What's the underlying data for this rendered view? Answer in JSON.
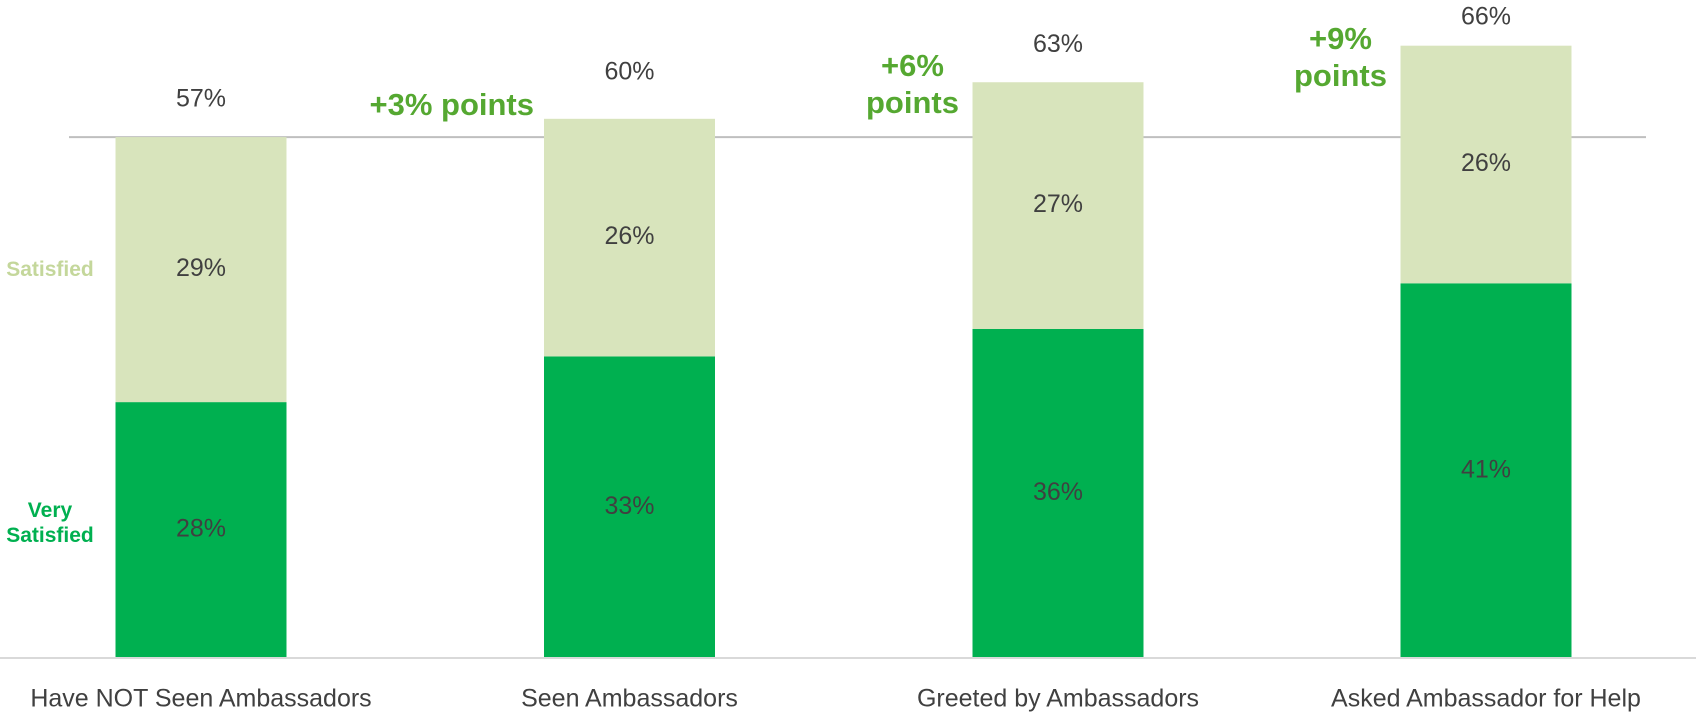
{
  "chart_data": {
    "type": "stacked_bar",
    "categories": [
      "Have NOT Seen Ambassadors",
      "Seen Ambassadors",
      "Greeted by Ambassadors",
      "Asked Ambassador for Help"
    ],
    "series": [
      {
        "name": "Very Satisfied",
        "color": "#00b050",
        "label_color": "#00b050",
        "values": [
          28,
          33,
          36,
          41
        ],
        "value_labels": [
          "28%",
          "33%",
          "36%",
          "41%"
        ]
      },
      {
        "name": "Satisfied",
        "color": "#d8e4bc",
        "label_color": "#c4d79b",
        "values": [
          29,
          26,
          27,
          26
        ],
        "value_labels": [
          "29%",
          "26%",
          "27%",
          "26%"
        ]
      }
    ],
    "totals": {
      "values": [
        57,
        60,
        63,
        66
      ],
      "value_labels": [
        "57%",
        "60%",
        "63%",
        "66%"
      ]
    },
    "annotations": [
      null,
      "+3% points",
      "+6% points",
      "+9% points"
    ],
    "annotation_color": "#55a831",
    "ylim": [
      0,
      72
    ]
  }
}
